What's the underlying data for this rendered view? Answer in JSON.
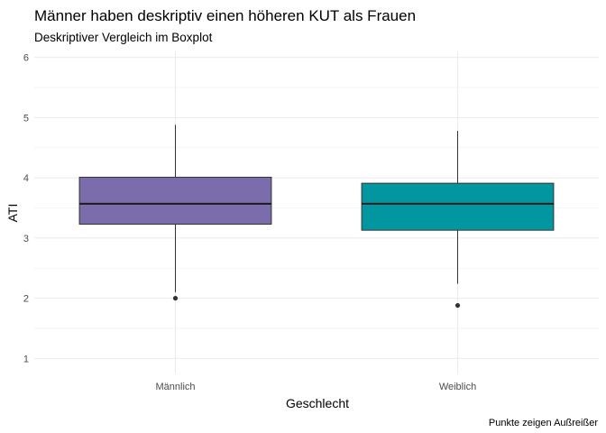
{
  "chart_data": {
    "type": "boxplot",
    "title": "Männer haben deskriptiv einen höheren KUT als Frauen",
    "subtitle": "Deskriptiver Vergleich im Boxplot",
    "xlabel": "Geschlecht",
    "ylabel": "ATI",
    "caption": "Punkte zeigen Außreißer",
    "categories": [
      "Männlich",
      "Weiblich"
    ],
    "y_ticks": [
      "1",
      "2",
      "3",
      "4",
      "5",
      "6"
    ],
    "ylim": [
      0.75,
      6.1
    ],
    "grid": true,
    "legend": "none",
    "boxes": [
      {
        "category": "Männlich",
        "q1": 3.23,
        "median": 3.57,
        "q3": 4.01,
        "whisker_low": 2.1,
        "whisker_high": 4.88,
        "outliers": [
          2.0
        ],
        "color": "#7B6CAC"
      },
      {
        "category": "Weiblich",
        "q1": 3.13,
        "median": 3.57,
        "q3": 3.91,
        "whisker_low": 2.24,
        "whisker_high": 4.78,
        "outliers": [
          1.88
        ],
        "color": "#0297A0"
      }
    ]
  }
}
